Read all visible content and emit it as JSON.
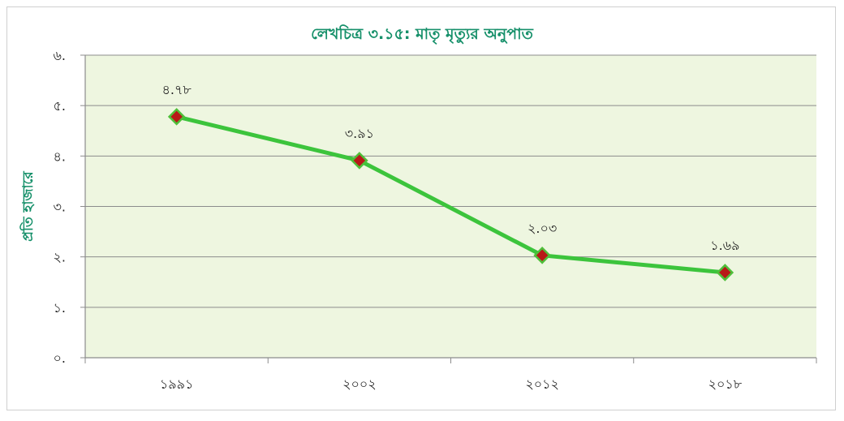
{
  "chart_data": {
    "type": "line",
    "title": "লেখচিত্র ৩.১৫: মাতৃ মৃত্যুর অনুপাত",
    "xlabel": "",
    "ylabel": "প্রতি হাজারে",
    "categories": [
      "১৯৯১",
      "২০০২",
      "২০১২",
      "২০১৮"
    ],
    "series": [
      {
        "values": [
          4.78,
          3.91,
          2.03,
          1.69
        ],
        "data_labels": [
          "৪.৭৮",
          "৩.৯১",
          "২.০৩",
          "১.৬৯"
        ]
      }
    ],
    "ylim": [
      0,
      6
    ],
    "yticks": [
      0,
      1,
      2,
      3,
      4,
      5,
      6
    ],
    "ytick_labels": [
      "০.",
      "১.",
      "২.",
      "৩.",
      "৪.",
      "৫.",
      "৬."
    ],
    "grid": true,
    "legend": "none",
    "colors": {
      "line": "#3cc43c",
      "marker_fill": "#b81818",
      "marker_stroke": "#4fbf3a",
      "plot_background": "#eef6e0",
      "gridline": "#8c8c8c",
      "title": "#16906a",
      "ylabel": "#16906a"
    }
  }
}
